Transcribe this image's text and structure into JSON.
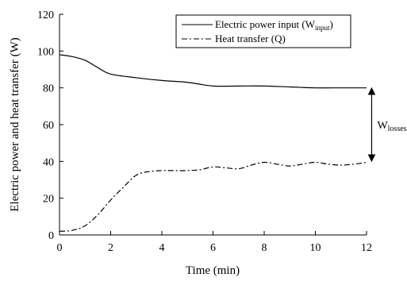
{
  "chart_data": {
    "type": "line",
    "title": "",
    "xlabel": "Time (min)",
    "ylabel": "Electric power and heat transfer (W)",
    "xlim": [
      0,
      12
    ],
    "ylim": [
      0,
      120
    ],
    "x_ticks": [
      0,
      2,
      4,
      6,
      8,
      10,
      12
    ],
    "y_ticks": [
      0,
      20,
      40,
      60,
      80,
      100,
      120
    ],
    "grid": false,
    "legend": {
      "placement": "top-right",
      "entries": [
        {
          "label_main": "Electric power input (W",
          "label_sub": "input",
          "label_end": ")",
          "style": "solid"
        },
        {
          "label_main": "Heat transfer (Q)",
          "label_sub": "",
          "label_end": "",
          "style": "dash-dot"
        }
      ]
    },
    "series": [
      {
        "name": "Electric power input (Winput)",
        "style": "solid",
        "x": [
          0,
          0.5,
          1,
          1.5,
          2,
          3,
          4,
          5,
          6,
          7,
          8,
          9,
          10,
          11,
          12
        ],
        "y": [
          98,
          97,
          95,
          91,
          87.5,
          85.5,
          84,
          83,
          81,
          81,
          81,
          80.5,
          80,
          80,
          80
        ]
      },
      {
        "name": "Heat transfer (Q)",
        "style": "dash-dot",
        "x": [
          0,
          0.5,
          1,
          1.5,
          2,
          2.5,
          3,
          3.5,
          4,
          4.5,
          5,
          5.5,
          6,
          6.5,
          7,
          7.5,
          8,
          8.5,
          9,
          9.5,
          10,
          10.5,
          11,
          11.5,
          12
        ],
        "y": [
          2,
          2.5,
          5,
          11,
          19,
          26,
          32.5,
          34.5,
          35,
          35,
          35,
          35.5,
          37,
          36.5,
          36,
          38,
          39.5,
          38.5,
          37.5,
          38.5,
          39.5,
          38.5,
          38,
          38.5,
          39.5
        ]
      }
    ],
    "annotation": {
      "label_main": "W",
      "label_sub": "losses",
      "x": 12.2,
      "y_from": 80,
      "y_to": 40
    }
  }
}
